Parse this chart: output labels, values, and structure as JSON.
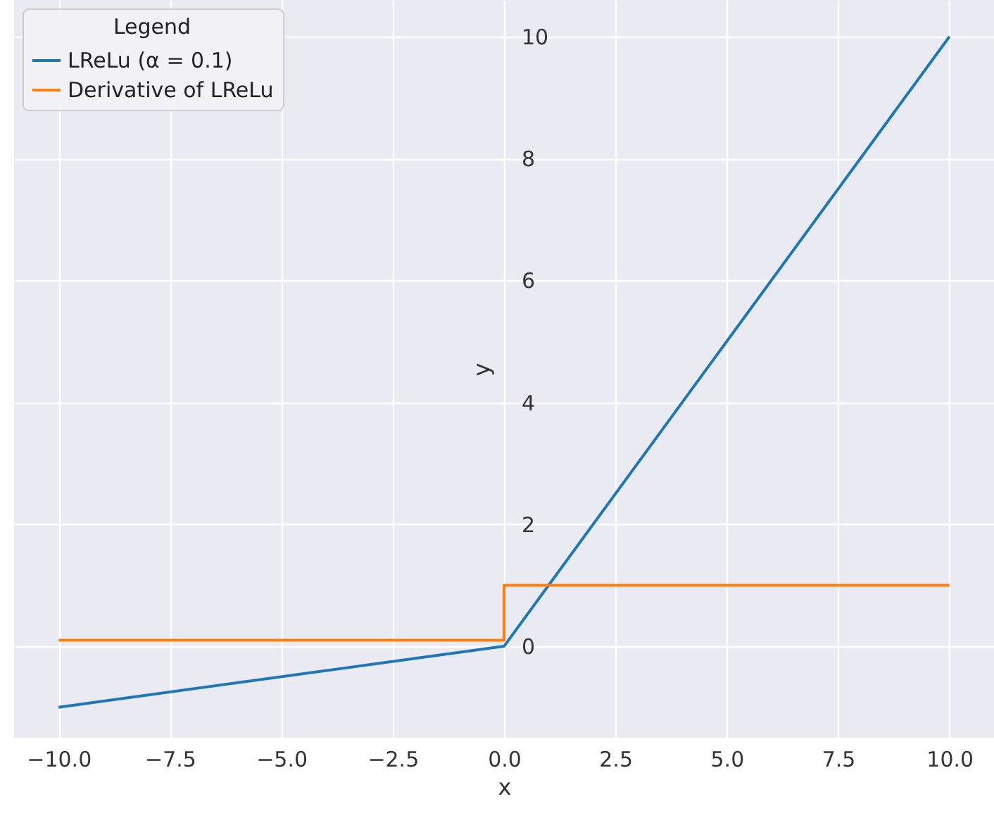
{
  "chart_data": {
    "type": "line",
    "xlabel": "x",
    "ylabel": "y",
    "legend_title": "Legend",
    "series": [
      {
        "name": "LReLu (α = 0.1)",
        "color": "#1f77b4",
        "x": [
          -10,
          0,
          10
        ],
        "values": [
          -1,
          0,
          10
        ]
      },
      {
        "name": "Derivative of LReLu",
        "color": "#ff7f0e",
        "x": [
          -10,
          0,
          0,
          10
        ],
        "values": [
          0.1,
          0.1,
          1,
          1
        ]
      }
    ],
    "xlim": [
      -11,
      11
    ],
    "ylim": [
      -1.5,
      10.6
    ],
    "xticks": [
      {
        "value": -10,
        "label": "−10.0"
      },
      {
        "value": -7.5,
        "label": "−7.5"
      },
      {
        "value": -5,
        "label": "−5.0"
      },
      {
        "value": -2.5,
        "label": "−2.5"
      },
      {
        "value": 0,
        "label": "0.0"
      },
      {
        "value": 2.5,
        "label": "2.5"
      },
      {
        "value": 5,
        "label": "5.0"
      },
      {
        "value": 7.5,
        "label": "7.5"
      },
      {
        "value": 10,
        "label": "10.0"
      }
    ],
    "yticks": [
      0,
      2,
      4,
      6,
      8,
      10
    ],
    "grid": true,
    "legend": "top left",
    "marker": "none",
    "line_style": "solid"
  }
}
